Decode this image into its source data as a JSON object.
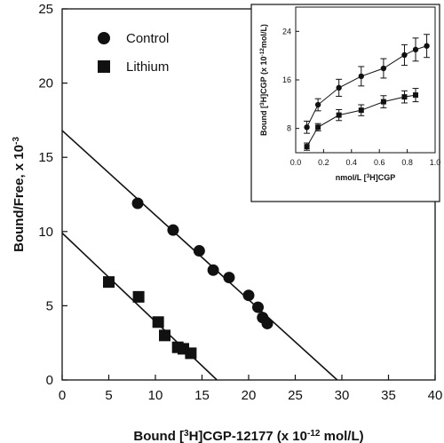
{
  "chart_data": [
    {
      "type": "scatter",
      "role": "main",
      "xlabel": {
        "pre": "Bound [",
        "sup": "3",
        "mid": "H]CGP-12177 (x 10",
        "sup2": "-12",
        "post": " mol/L)"
      },
      "ylabel": {
        "pre": "Bound/Free, x 10",
        "sup": "-3"
      },
      "xlim": [
        0,
        40
      ],
      "ylim": [
        0,
        25
      ],
      "xticks": [
        0,
        5,
        10,
        15,
        20,
        25,
        30,
        35,
        40
      ],
      "yticks": [
        0,
        5,
        10,
        15,
        20,
        25
      ],
      "grid": false,
      "legend_position": "top-left",
      "series": [
        {
          "name": "Control",
          "marker": "circle",
          "points": [
            [
              8.1,
              11.9
            ],
            [
              11.9,
              10.1
            ],
            [
              14.7,
              8.7
            ],
            [
              16.2,
              7.4
            ],
            [
              17.9,
              6.9
            ],
            [
              20.0,
              5.7
            ],
            [
              21.0,
              4.9
            ],
            [
              21.5,
              4.2
            ],
            [
              22.0,
              3.8
            ]
          ],
          "fit_line": [
            [
              0,
              16.8
            ],
            [
              29.5,
              0
            ]
          ]
        },
        {
          "name": "Lithium",
          "marker": "square",
          "points": [
            [
              5.0,
              6.6
            ],
            [
              8.2,
              5.6
            ],
            [
              10.3,
              3.9
            ],
            [
              11.0,
              3.0
            ],
            [
              12.4,
              2.2
            ],
            [
              13.0,
              2.1
            ],
            [
              13.8,
              1.8
            ]
          ],
          "fit_line": [
            [
              0,
              9.9
            ],
            [
              16.6,
              0
            ]
          ]
        }
      ]
    },
    {
      "type": "scatter",
      "role": "inset",
      "xlabel": {
        "pre": "nmol/L [",
        "sup": "3",
        "post": "H]CGP"
      },
      "ylabel": {
        "pre": "Bound [",
        "sup": "3",
        "mid": "H]CGP (x 10",
        "sup2": "-12",
        "post": "mol/L)"
      },
      "xlim": [
        0,
        1.0
      ],
      "ylim": [
        4,
        28
      ],
      "xticks": [
        "0.0",
        "0.2",
        "0.4",
        "0.6",
        "0.8",
        "1.0"
      ],
      "yticks": [
        8,
        16,
        24
      ],
      "series": [
        {
          "name": "Control",
          "marker": "circle",
          "points": [
            [
              0.08,
              8.2
            ],
            [
              0.16,
              11.9
            ],
            [
              0.31,
              14.7
            ],
            [
              0.47,
              16.6
            ],
            [
              0.63,
              17.9
            ],
            [
              0.78,
              20.1
            ],
            [
              0.86,
              21.0
            ],
            [
              0.94,
              21.6
            ]
          ],
          "errors": [
            1.0,
            1.0,
            1.4,
            1.6,
            1.6,
            1.7,
            1.9,
            1.9
          ]
        },
        {
          "name": "Lithium",
          "marker": "square",
          "points": [
            [
              0.08,
              5.0
            ],
            [
              0.16,
              8.2
            ],
            [
              0.31,
              10.2
            ],
            [
              0.47,
              11.0
            ],
            [
              0.63,
              12.4
            ],
            [
              0.78,
              13.2
            ],
            [
              0.86,
              13.5
            ]
          ],
          "errors": [
            0.6,
            0.6,
            0.9,
            0.9,
            1.0,
            1.0,
            1.1
          ]
        }
      ]
    }
  ]
}
